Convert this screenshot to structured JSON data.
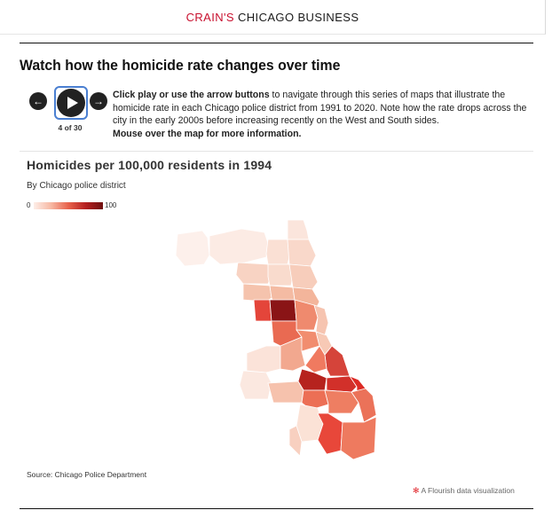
{
  "header": {
    "brand": "CRAIN'S",
    "title": "CHICAGO BUSINESS"
  },
  "headline": "Watch how the homicide rate changes over time",
  "controls": {
    "prev_icon": "arrow-left-icon",
    "play_icon": "play-icon",
    "next_icon": "arrow-right-icon",
    "counter": "4 of 30",
    "current_index": 4,
    "total": 30
  },
  "instructions": {
    "bold_lead": "Click play or use the arrow buttons",
    "body": " to navigate through this series of maps that illustrate the homicide rate in each Chicago police district from 1991 to 2020. Note how the rate drops across the city in the early 2000s before increasing recently on the West and South sides.",
    "bold_tail": "Mouse over the map for more information."
  },
  "chart": {
    "title": "Homicides per 100,000 residents in 1994",
    "subtitle": "By Chicago police district",
    "legend": {
      "min": "0",
      "max": "100"
    },
    "source": "Source: Chicago Police Department",
    "credit": "A Flourish data visualization"
  },
  "chart_data": {
    "type": "choropleth",
    "scale": {
      "min": 0,
      "max": 100,
      "colors": [
        "#fdeee8",
        "#f7b8a3",
        "#e8624b",
        "#b51f1f",
        "#6f0f0f"
      ]
    }
  },
  "colors": {
    "brand_red": "#c8102e",
    "play_outline": "#4a7fd1",
    "flourish_red": "#e0242a"
  }
}
